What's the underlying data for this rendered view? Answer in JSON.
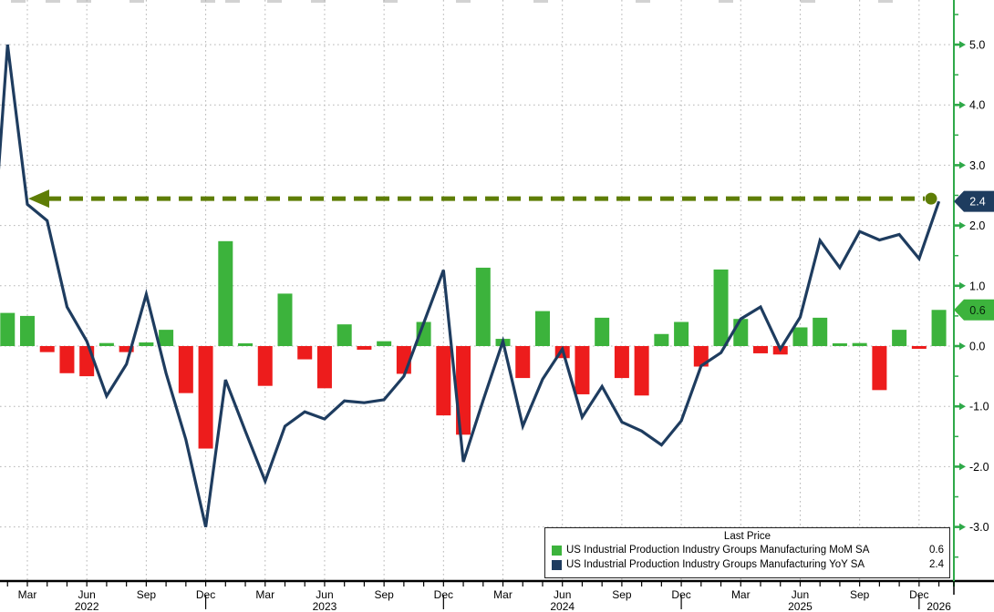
{
  "chart_data": {
    "type": "bar+line",
    "legend_title": "Last Price",
    "month_count": 49,
    "start_month": "2022-01",
    "end_month": "2026-01",
    "series": [
      {
        "name": "US Industrial Production Industry Groups Manufacturing MoM SA",
        "type": "bar",
        "last": "0.6",
        "color_pos": "#3cb33c",
        "color_neg": "#ed1c1c",
        "values": [
          null,
          0.55,
          0.5,
          -0.1,
          -0.45,
          -0.5,
          0.05,
          -0.1,
          0.06,
          0.27,
          -0.78,
          -1.7,
          1.74,
          0.02,
          -0.66,
          0.87,
          -0.22,
          -0.7,
          0.36,
          -0.06,
          0.08,
          -0.46,
          0.4,
          -1.15,
          -1.47,
          1.3,
          0.12,
          -0.53,
          0.58,
          -0.2,
          -0.8,
          0.47,
          -0.53,
          -0.82,
          0.2,
          0.4,
          -0.34,
          1.27,
          0.45,
          -0.12,
          -0.14,
          0.31,
          0.47,
          0.03,
          0.05,
          -0.73,
          0.27,
          -0.02,
          0.6
        ]
      },
      {
        "name": "US Industrial Production Industry Groups Manufacturing YoY SA",
        "type": "line",
        "last": "2.4",
        "color": "#1e3c5f",
        "values": [
          0.42,
          5.0,
          2.35,
          2.08,
          0.65,
          0.08,
          -0.83,
          -0.3,
          0.86,
          -0.45,
          -1.55,
          -3.0,
          -0.56,
          -1.41,
          -2.24,
          -1.33,
          -1.09,
          -1.21,
          -0.91,
          -0.94,
          -0.89,
          -0.5,
          0.38,
          1.26,
          -1.92,
          -0.9,
          0.08,
          -1.33,
          -0.55,
          -0.05,
          -1.18,
          -0.67,
          -1.26,
          -1.41,
          -1.64,
          -1.24,
          -0.33,
          -0.11,
          0.45,
          0.65,
          -0.05,
          0.48,
          1.75,
          1.3,
          1.9,
          1.76,
          1.85,
          1.45,
          2.4
        ]
      }
    ],
    "y_axis": {
      "color": "#2fa949",
      "ylim": [
        -3.9,
        5.75
      ],
      "ticks": [
        5,
        4,
        3,
        2,
        1,
        0,
        -1,
        -2,
        -3
      ],
      "tick_labels": [
        "5.0",
        "4.0",
        "3.0",
        "2.0",
        "1.0",
        "0.0",
        "-1.0",
        "-2.0",
        "-3.0"
      ],
      "minor_ticks": [
        5.5,
        4.5,
        3.5,
        2.5,
        1.5,
        0.5,
        -0.5,
        -1.5,
        -2.5,
        -3.5
      ]
    },
    "x_axis": {
      "quarter_ticks": [
        {
          "i": 2,
          "label": "Mar"
        },
        {
          "i": 5,
          "label": "Jun"
        },
        {
          "i": 8,
          "label": "Sep"
        },
        {
          "i": 11,
          "label": "Dec"
        },
        {
          "i": 14,
          "label": "Mar"
        },
        {
          "i": 17,
          "label": "Jun"
        },
        {
          "i": 20,
          "label": "Sep"
        },
        {
          "i": 23,
          "label": "Dec"
        },
        {
          "i": 26,
          "label": "Mar"
        },
        {
          "i": 29,
          "label": "Jun"
        },
        {
          "i": 32,
          "label": "Sep"
        },
        {
          "i": 35,
          "label": "Dec"
        },
        {
          "i": 38,
          "label": "Mar"
        },
        {
          "i": 41,
          "label": "Jun"
        },
        {
          "i": 44,
          "label": "Sep"
        },
        {
          "i": 47,
          "label": "Dec"
        }
      ],
      "year_labels": [
        {
          "i": 5,
          "label": "2022"
        },
        {
          "i": 17,
          "label": "2023"
        },
        {
          "i": 29,
          "label": "2024"
        },
        {
          "i": 41,
          "label": "2025"
        },
        {
          "i": 48,
          "label": "2026"
        }
      ],
      "year_separators": [
        11,
        23,
        35,
        47
      ]
    },
    "annotation": {
      "style": "dashed-arrow",
      "level": 2.4,
      "color": "#5e7d05"
    },
    "badges": [
      {
        "text": "2.4",
        "value": 2.4,
        "bg": "#1e3c5f",
        "fg": "#ffffff"
      },
      {
        "text": "0.6",
        "value": 0.6,
        "bg": "#3cb33c",
        "fg": "#07230c"
      }
    ],
    "grid": {
      "color": "#b5b5b5",
      "style": "dotted"
    },
    "top_crop_marks": [
      12,
      50,
      84,
      142,
      220,
      247,
      293,
      341,
      420,
      500,
      585,
      697,
      788,
      878,
      963
    ]
  },
  "legend": {
    "title_bind_note": "see chart_data.legend_title"
  }
}
